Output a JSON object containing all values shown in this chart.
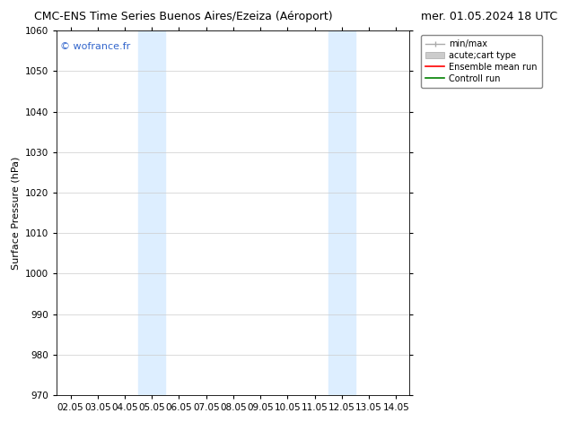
{
  "title_left": "CMC-ENS Time Series Buenos Aires/Ezeiza (Aéroport)",
  "title_right": "mer. 01.05.2024 18 UTC",
  "ylabel": "Surface Pressure (hPa)",
  "ylim": [
    970,
    1060
  ],
  "yticks": [
    970,
    980,
    990,
    1000,
    1010,
    1020,
    1030,
    1040,
    1050,
    1060
  ],
  "xtick_labels": [
    "02.05",
    "03.05",
    "04.05",
    "05.05",
    "06.05",
    "07.05",
    "08.05",
    "09.05",
    "10.05",
    "11.05",
    "12.05",
    "13.05",
    "14.05"
  ],
  "xtick_values": [
    0,
    1,
    2,
    3,
    4,
    5,
    6,
    7,
    8,
    9,
    10,
    11,
    12
  ],
  "xlim": [
    -0.5,
    12.5
  ],
  "shaded_regions": [
    {
      "xmin": 2.5,
      "xmax": 3.5
    },
    {
      "xmin": 9.5,
      "xmax": 10.5
    }
  ],
  "shade_color": "#ddeeff",
  "shade_alpha": 1.0,
  "watermark": "© wofrance.fr",
  "watermark_color": "#3366cc",
  "legend_entries": [
    {
      "label": "min/max"
    },
    {
      "label": "acute;cart type"
    },
    {
      "label": "Ensemble mean run"
    },
    {
      "label": "Controll run"
    }
  ],
  "background_color": "#ffffff",
  "grid_color": "#cccccc",
  "title_fontsize": 9,
  "axis_label_fontsize": 8,
  "tick_fontsize": 7.5,
  "watermark_fontsize": 8
}
